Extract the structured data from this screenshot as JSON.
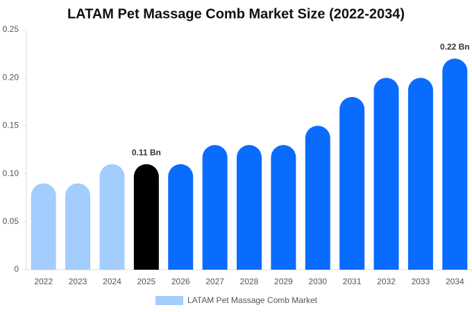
{
  "chart_data": {
    "type": "bar",
    "title": "LATAM Pet Massage Comb Market Size (2022-2034)",
    "categories": [
      "2022",
      "2023",
      "2024",
      "2025",
      "2026",
      "2027",
      "2028",
      "2029",
      "2030",
      "2031",
      "2032",
      "2033",
      "2034"
    ],
    "series": [
      {
        "name": "LATAM Pet Massage Comb Market",
        "color": "#a3cdfd",
        "values": [
          0.09,
          0.09,
          0.11,
          0.11,
          0.11,
          0.13,
          0.13,
          0.13,
          0.15,
          0.18,
          0.2,
          0.2,
          0.22
        ],
        "value_labels": [
          null,
          null,
          null,
          "0.11 Bn",
          null,
          null,
          null,
          null,
          null,
          null,
          null,
          null,
          "0.22 Bn"
        ],
        "colors": [
          "#a3cdfd",
          "#a3cdfd",
          "#a3cdfd",
          "#000000",
          "#0a6cff",
          "#0a6cff",
          "#0a6cff",
          "#0a6cff",
          "#0a6cff",
          "#0a6cff",
          "#0a6cff",
          "#0a6cff",
          "#0a6cff"
        ]
      }
    ],
    "ylim": [
      0,
      0.25
    ],
    "yticks": [
      0,
      0.05,
      {
        "value": 0.1,
        "label": "0.10"
      },
      0.15,
      {
        "value": 0.2,
        "label": "0.20"
      },
      0.25
    ],
    "grid": false,
    "legend": "bottom"
  }
}
